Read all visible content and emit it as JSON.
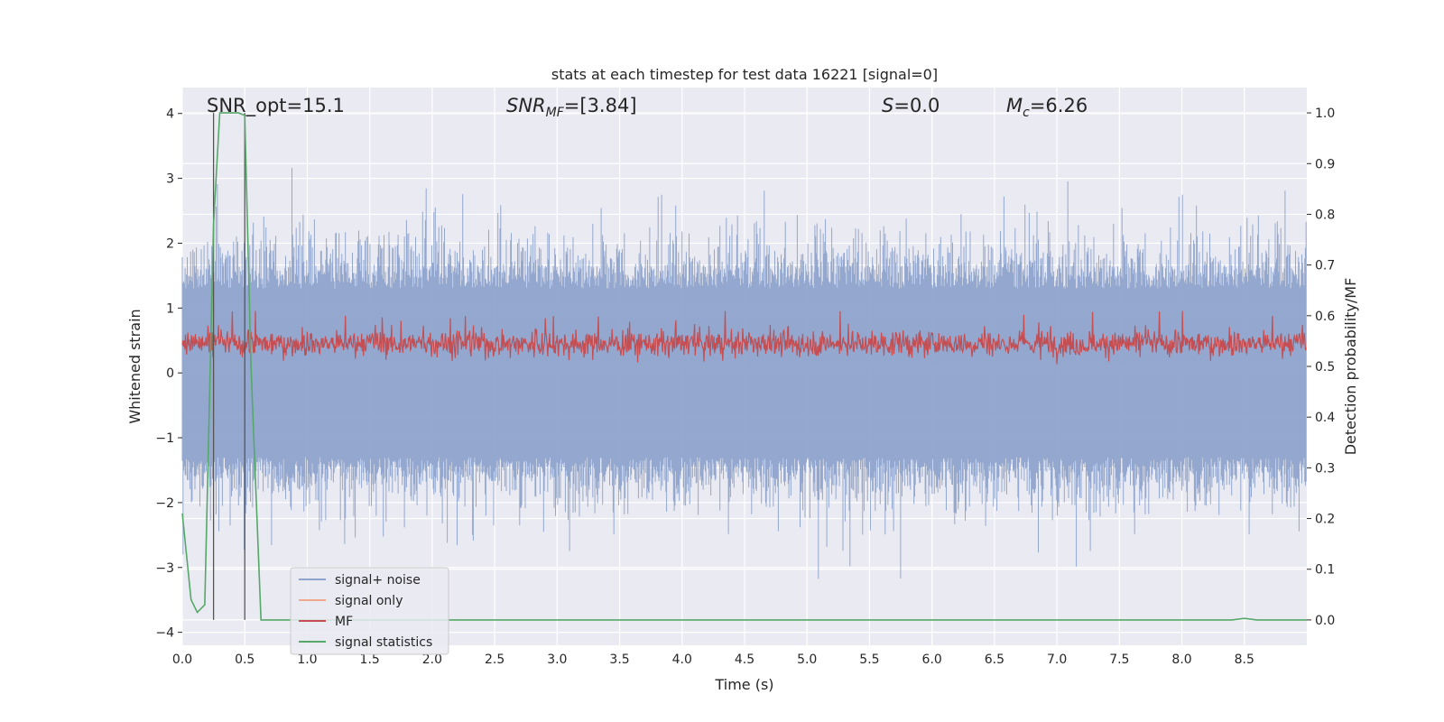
{
  "chart_data": {
    "type": "line",
    "title": "stats at each timestep for test data 16221 [signal=0]",
    "xlabel": "Time (s)",
    "ylabel_left": "Whitened strain",
    "ylabel_right": "Detection probability/MF",
    "xlim": [
      0.0,
      9.0
    ],
    "ylim_left": [
      -4.2,
      4.4
    ],
    "ylim_right": [
      -0.05,
      1.05
    ],
    "x_ticks": [
      "0.0",
      "0.5",
      "1.0",
      "1.5",
      "2.0",
      "2.5",
      "3.0",
      "3.5",
      "4.0",
      "4.5",
      "5.0",
      "5.5",
      "6.0",
      "6.5",
      "7.0",
      "7.5",
      "8.0",
      "8.5"
    ],
    "y_ticks_left": [
      "4",
      "3",
      "2",
      "1",
      "0",
      "−1",
      "−2",
      "−3",
      "−4"
    ],
    "y_ticks_right": [
      "1.0",
      "0.9",
      "0.8",
      "0.7",
      "0.6",
      "0.5",
      "0.4",
      "0.3",
      "0.2",
      "0.1",
      "0.0"
    ],
    "annotations": {
      "snr_opt": "SNR_opt=15.1",
      "snr_mf": "SNR_MF=[3.84]",
      "s_value": "S=0.0",
      "mc_value": "M_c=6.26"
    },
    "grid": true,
    "legend_position": "lower-left",
    "series": [
      {
        "name": "signal+ noise",
        "color": "#8fa4cc",
        "axis": "left",
        "description_range": [
          -3.6,
          4.0
        ]
      },
      {
        "name": "signal only",
        "color": "#f0a98c",
        "axis": "left"
      },
      {
        "name": "MF",
        "color": "#c44e52",
        "axis": "right",
        "band": [
          0.5,
          0.61
        ]
      },
      {
        "name": "signal statistics",
        "color": "#55a868",
        "axis": "right",
        "x": [
          0.0,
          0.07,
          0.12,
          0.18,
          0.25,
          0.3,
          0.35,
          0.4,
          0.45,
          0.5,
          0.55,
          0.63,
          0.7,
          1.0,
          2.0,
          2.5,
          3.0,
          4.0,
          5.0,
          6.0,
          7.0,
          8.0,
          8.4,
          8.5,
          8.6,
          9.0
        ],
        "y": [
          0.21,
          0.04,
          0.015,
          0.03,
          0.78,
          1.0,
          1.0,
          1.0,
          1.0,
          0.995,
          0.5,
          0.0,
          0.0,
          0.0,
          0.0,
          0.0,
          0.0,
          0.0,
          0.0,
          0.0,
          0.0,
          0.0,
          0.0,
          0.003,
          0.0,
          0.0
        ]
      }
    ],
    "vertical_lines_x": [
      0.25,
      0.5
    ]
  }
}
